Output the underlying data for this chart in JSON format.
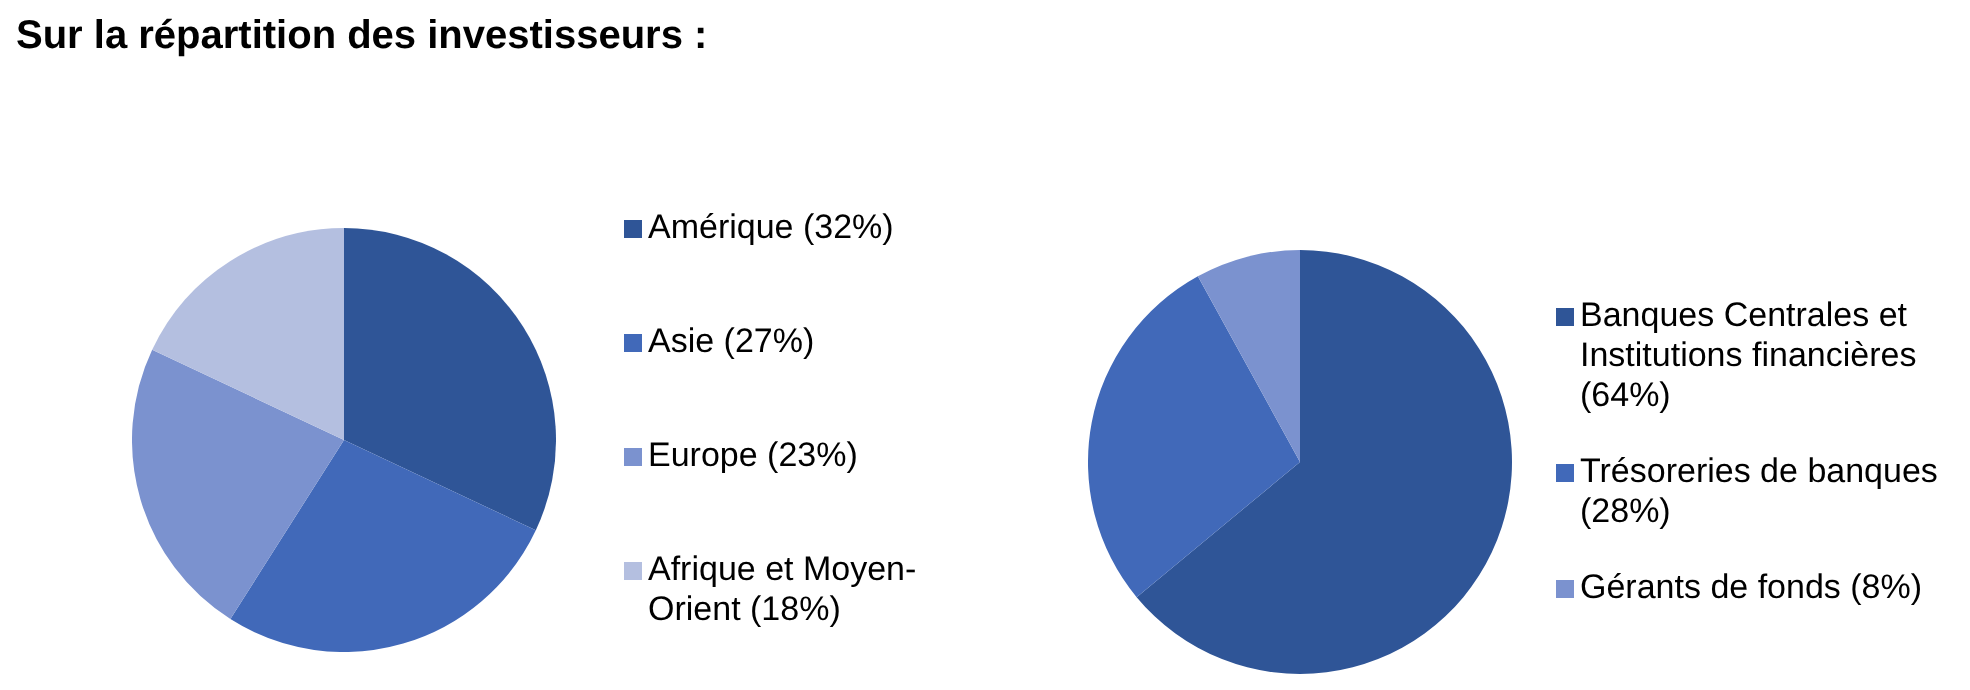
{
  "chart_data": [
    {
      "type": "pie",
      "title": "Sur la répartition des investisseurs :",
      "categories": [
        "Amérique (32%)",
        "Asie (27%)",
        "Europe (23%)",
        "Afrique et Moyen-Orient (18%)"
      ],
      "values": [
        32,
        27,
        23,
        18
      ],
      "colors": [
        "#2f5597",
        "#4169b9",
        "#7b92cf",
        "#b4bfe0"
      ],
      "legend": "right"
    },
    {
      "type": "pie",
      "categories": [
        "Banques Centrales et Institutions financières (64%)",
        "Trésoreries de banques (28%)",
        "Gérants de fonds (8%)"
      ],
      "values": [
        64,
        28,
        8
      ],
      "colors": [
        "#2f5597",
        "#4169b9",
        "#7b92cf"
      ],
      "legend": "right"
    }
  ]
}
